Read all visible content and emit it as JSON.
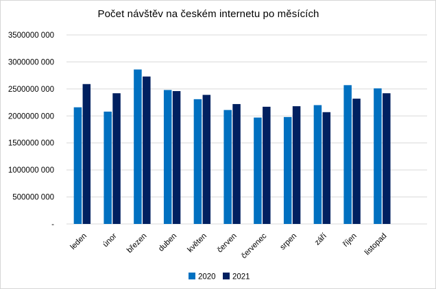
{
  "chart_data": {
    "type": "bar",
    "title": "Počet návštěv na českém internetu po měsících",
    "categories": [
      "leden",
      "únor",
      "březen",
      "duben",
      "květen",
      "červen",
      "červenec",
      "srpen",
      "září",
      "říjen",
      "listopad"
    ],
    "series": [
      {
        "name": "2020",
        "color": "#0070C0",
        "values": [
          2160000000,
          2080000000,
          2860000000,
          2480000000,
          2310000000,
          2110000000,
          1970000000,
          1980000000,
          2200000000,
          2570000000,
          2510000000
        ]
      },
      {
        "name": "2021",
        "color": "#002060",
        "values": [
          2590000000,
          2420000000,
          2730000000,
          2460000000,
          2390000000,
          2220000000,
          2170000000,
          2180000000,
          2070000000,
          2320000000,
          2420000000
        ]
      }
    ],
    "y_ticks": [
      {
        "label": "3500000 000",
        "value": 3500000000
      },
      {
        "label": "3000000 000",
        "value": 3000000000
      },
      {
        "label": "2500000 000",
        "value": 2500000000
      },
      {
        "label": "2000000 000",
        "value": 2000000000
      },
      {
        "label": "1500000 000",
        "value": 1500000000
      },
      {
        "label": "1000000 000",
        "value": 1000000000
      },
      {
        "label": "500000 000",
        "value": 500000000
      },
      {
        "label": "-",
        "value": 0
      }
    ],
    "ylim": [
      0,
      3500000000
    ],
    "xlabel": "",
    "ylabel": "",
    "grid": "horizontal",
    "gridline_color": "#D9D9D9",
    "axis_text_color": "#000000",
    "x_label_rotation_deg": -45,
    "legend_position": "bottom",
    "extra_empty_category_slot": true
  }
}
